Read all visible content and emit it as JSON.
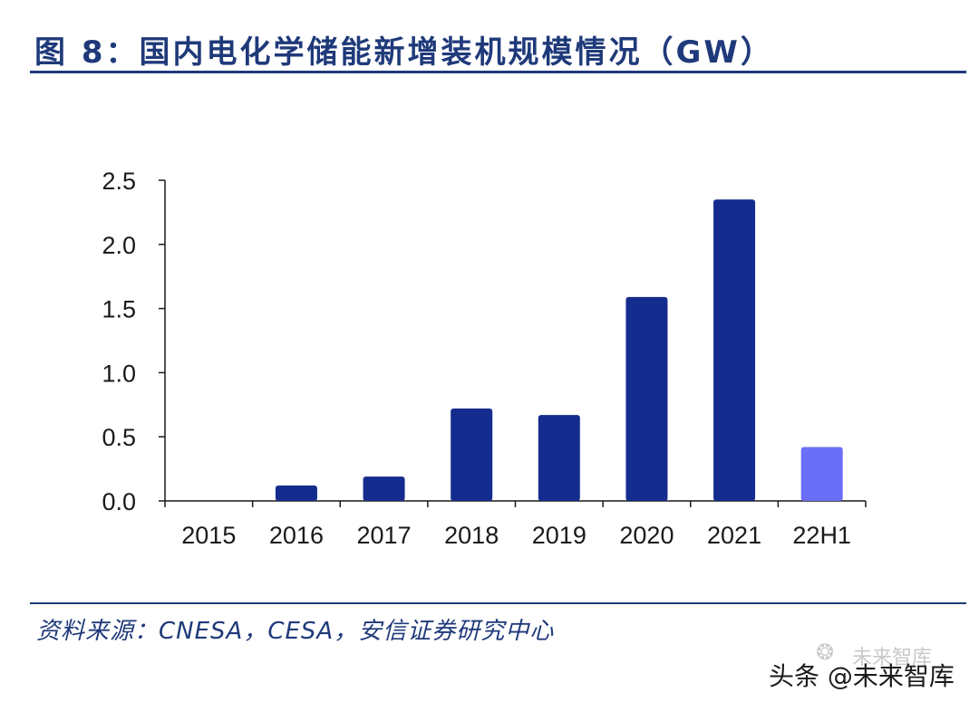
{
  "figure": {
    "title": "图 8：国内电化学储能新增装机规模情况（GW）",
    "source": "资料来源：CNESA，CESA，安信证券研究中心"
  },
  "watermark": {
    "label": "头条 @未来智库",
    "faint_label": "未来智库",
    "icon": "wechat-icon"
  },
  "colors": {
    "title": "#1f3a7a",
    "bar": "#142c8e",
    "bar_highlight": "#6b6ff7",
    "axis": "#1a1a1a"
  },
  "chart_data": {
    "type": "bar",
    "title": "国内电化学储能新增装机规模情况（GW）",
    "xlabel": "",
    "ylabel": "GW",
    "categories": [
      "2015",
      "2016",
      "2017",
      "2018",
      "2019",
      "2020",
      "2021",
      "22H1"
    ],
    "values": [
      0.0,
      0.12,
      0.19,
      0.72,
      0.67,
      1.59,
      2.35,
      0.42
    ],
    "highlight": [
      false,
      false,
      false,
      false,
      false,
      false,
      false,
      true
    ],
    "ylim": [
      0,
      2.5
    ],
    "yticks": [
      "0.0",
      "0.5",
      "1.0",
      "1.5",
      "2.0",
      "2.5"
    ],
    "grid": false,
    "legend": "none"
  }
}
